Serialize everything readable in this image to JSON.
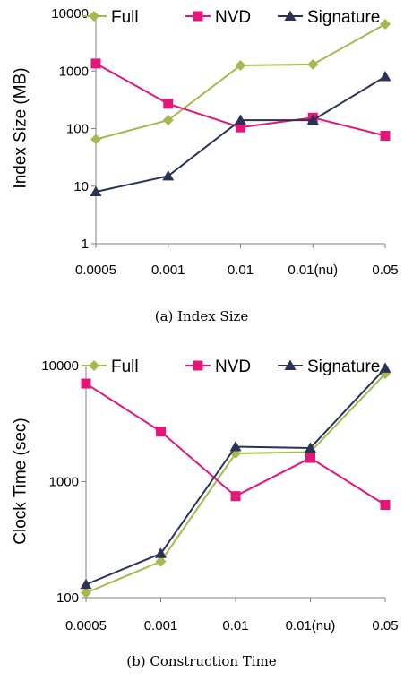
{
  "chart_data": [
    {
      "type": "line",
      "caption": "(a) Index Size",
      "ylabel": "Index Size (MB)",
      "yscale": "log",
      "ylim": [
        1,
        10000
      ],
      "yticks": [
        1,
        10,
        100,
        1000,
        10000
      ],
      "ytick_labels": [
        "1",
        "10",
        "100",
        "1000",
        "10000"
      ],
      "categories": [
        "0.0005",
        "0.001",
        "0.01",
        "0.01(nu)",
        "0.05"
      ],
      "legend": "top",
      "grid": false,
      "series": [
        {
          "name": "Full",
          "color": "#a4b94e",
          "marker": "diamond",
          "values": [
            65,
            140,
            1250,
            1300,
            6500
          ]
        },
        {
          "name": "NVD",
          "color": "#e6157a",
          "marker": "square",
          "values": [
            1350,
            270,
            105,
            155,
            75
          ]
        },
        {
          "name": "Signature",
          "color": "#2a3355",
          "marker": "triangle",
          "values": [
            8,
            15,
            140,
            140,
            800
          ]
        }
      ]
    },
    {
      "type": "line",
      "caption": "(b) Construction Time",
      "ylabel": "Clock Time (sec)",
      "yscale": "log",
      "ylim": [
        100,
        10000
      ],
      "yticks": [
        100,
        1000,
        10000
      ],
      "ytick_labels": [
        "100",
        "1000",
        "10000"
      ],
      "categories": [
        "0.0005",
        "0.001",
        "0.01",
        "0.01(nu)",
        "0.05"
      ],
      "legend": "top",
      "grid": false,
      "series": [
        {
          "name": "Full",
          "color": "#a4b94e",
          "marker": "diamond",
          "values": [
            110,
            205,
            1750,
            1800,
            8500
          ]
        },
        {
          "name": "NVD",
          "color": "#e6157a",
          "marker": "square",
          "values": [
            7000,
            2700,
            750,
            1600,
            630
          ]
        },
        {
          "name": "Signature",
          "color": "#2a3355",
          "marker": "triangle",
          "values": [
            130,
            240,
            2000,
            1950,
            9500
          ]
        }
      ]
    }
  ]
}
